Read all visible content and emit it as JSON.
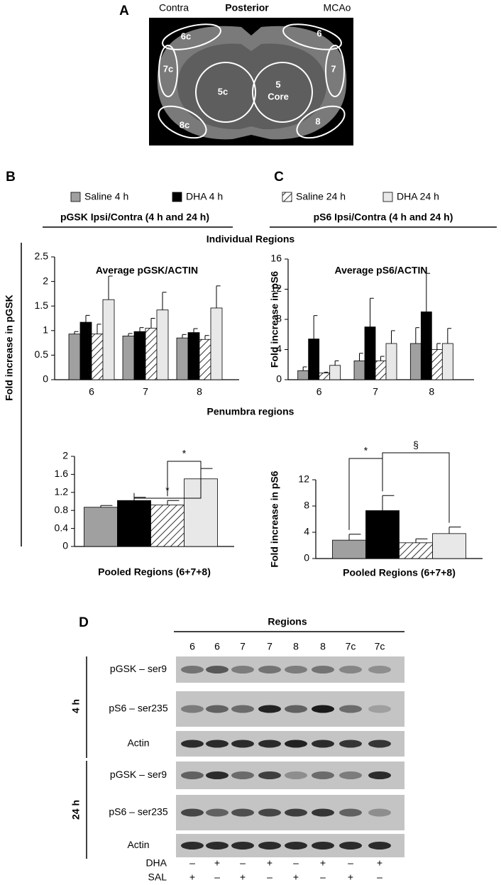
{
  "panel_a": {
    "letter": "A",
    "left": "Contra",
    "center": "Posterior",
    "right": "MCAo",
    "regions": [
      "6c",
      "6",
      "7c",
      "7",
      "5c",
      "5",
      "Core",
      "8c",
      "8"
    ]
  },
  "figure": {
    "letters": [
      "B",
      "C"
    ],
    "legend": [
      {
        "name": "Saline 4 h",
        "color": "#a0a0a0"
      },
      {
        "name": "DHA 4 h",
        "color": "#000000"
      },
      {
        "name": "Saline 24 h",
        "color": "#ffffff",
        "hatch": true
      },
      {
        "name": "DHA 24 h",
        "color": "#e8e8e8"
      }
    ],
    "headers": [
      "pGSK Ipsi/Contra (4 h and 24 h)",
      "pS6 Ipsi/Contra (4 h and 24 h)"
    ],
    "section_titles": [
      "Individual Regions",
      "Penumbra regions"
    ],
    "ylabel": "Fold increase in pGSK"
  },
  "chart_data": [
    {
      "type": "bar",
      "title": "Average pGSK/ACTIN",
      "categories": [
        "6",
        "7",
        "8"
      ],
      "series": [
        {
          "values": [
            0.93,
            0.89,
            0.85
          ],
          "errors": [
            0.05,
            0.05,
            0.07
          ]
        },
        {
          "values": [
            1.17,
            0.98,
            0.96
          ],
          "errors": [
            0.14,
            0.08,
            0.08
          ]
        },
        {
          "values": [
            0.93,
            1.05,
            0.82
          ],
          "errors": [
            0.2,
            0.2,
            0.08
          ]
        },
        {
          "values": [
            1.63,
            1.42,
            1.46
          ],
          "errors": [
            0.48,
            0.36,
            0.45
          ]
        }
      ],
      "ylim": [
        0,
        2.5
      ],
      "yticks": [
        0,
        0.5,
        1,
        1.5,
        2,
        2.5
      ]
    },
    {
      "type": "bar",
      "title": "Average pS6/ACTIN",
      "ylabel": "Fold increase in pS6",
      "categories": [
        "6",
        "7",
        "8"
      ],
      "series": [
        {
          "values": [
            1.2,
            2.5,
            4.8
          ],
          "errors": [
            0.5,
            1.0,
            2.1
          ]
        },
        {
          "values": [
            5.4,
            7.0,
            9.0
          ],
          "errors": [
            3.1,
            3.8,
            5.1
          ]
        },
        {
          "values": [
            0.9,
            2.5,
            4.0
          ],
          "errors": [
            0.1,
            0.6,
            0.8
          ]
        },
        {
          "values": [
            1.9,
            4.8,
            4.8
          ],
          "errors": [
            0.6,
            1.7,
            2.0
          ]
        }
      ],
      "ylim": [
        0,
        16
      ],
      "yticks": [
        0,
        4,
        8,
        12,
        16
      ]
    },
    {
      "type": "bar",
      "xlabel": "Pooled Regions (6+7+8)",
      "categories": [
        null
      ],
      "series": [
        {
          "values": [
            0.87
          ],
          "errors": [
            0.04
          ]
        },
        {
          "values": [
            1.02
          ],
          "errors": [
            0.07
          ]
        },
        {
          "values": [
            0.92
          ],
          "errors": [
            0.1
          ]
        },
        {
          "values": [
            1.5
          ],
          "errors": [
            0.23
          ]
        }
      ],
      "ylim": [
        0,
        2
      ],
      "yticks": [
        0,
        0.4,
        0.8,
        1.2,
        1.6,
        2
      ],
      "annotations": [
        "*",
        "*"
      ]
    },
    {
      "type": "bar",
      "ylabel": "Fold increase in pS6",
      "xlabel": "Pooled Regions (6+7+8)",
      "categories": [
        null
      ],
      "series": [
        {
          "values": [
            2.8
          ],
          "errors": [
            0.9
          ]
        },
        {
          "values": [
            7.3
          ],
          "errors": [
            2.3
          ]
        },
        {
          "values": [
            2.4
          ],
          "errors": [
            0.6
          ]
        },
        {
          "values": [
            3.8
          ],
          "errors": [
            1.0
          ]
        }
      ],
      "ylim": [
        0,
        12
      ],
      "yticks": [
        0,
        4,
        8,
        12
      ],
      "annotations": [
        "*",
        "§"
      ]
    }
  ],
  "panel_d": {
    "letter": "D",
    "title": "Regions",
    "lanes": [
      "6",
      "6",
      "7",
      "7",
      "8",
      "8",
      "7c",
      "7c"
    ],
    "groups": [
      "4 h",
      "24 h"
    ],
    "rows": [
      "pGSK – ser9",
      "pS6 – ser235",
      "Actin",
      "pGSK – ser9",
      "pS6 – ser235",
      "Actin"
    ],
    "treatments": [
      {
        "name": "DHA",
        "marks": [
          "–",
          "+",
          "–",
          "+",
          "–",
          "+",
          "–",
          "+"
        ]
      },
      {
        "name": "SAL",
        "marks": [
          "+",
          "–",
          "+",
          "–",
          "+",
          "–",
          "+",
          "–"
        ]
      }
    ]
  }
}
